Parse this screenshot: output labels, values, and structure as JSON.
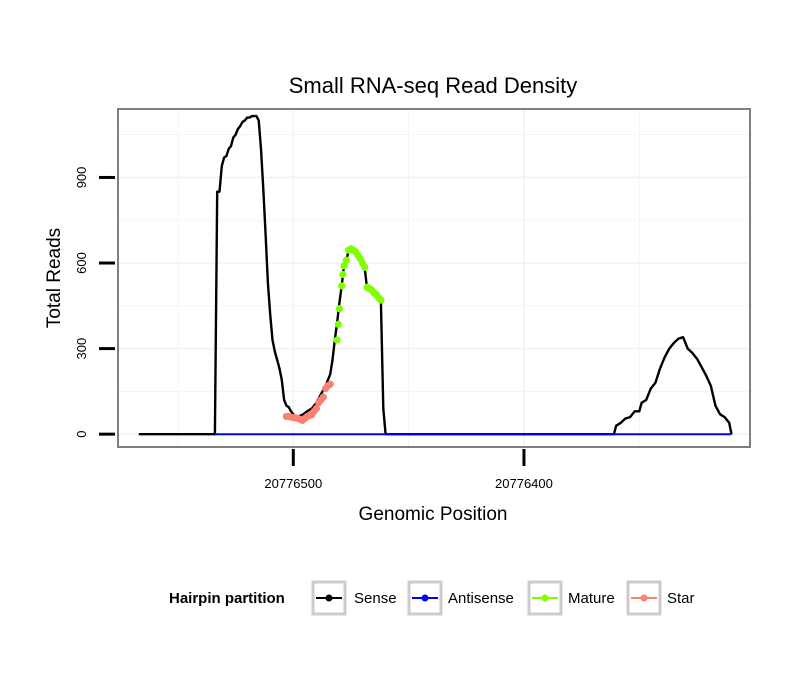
{
  "chart_data": {
    "type": "line",
    "title": "Small RNA-seq Read Density",
    "xlabel": "Genomic Position",
    "ylabel": "Total Reads",
    "x_reversed": true,
    "xlim": [
      20776576,
      20776302
    ],
    "ylim": [
      -45,
      1140
    ],
    "x_ticks": [
      20776500,
      20776400
    ],
    "x_tick_labels": [
      "20776500",
      "20776400"
    ],
    "y_ticks": [
      0,
      300,
      600,
      900
    ],
    "y_tick_labels": [
      "0",
      "300",
      "600",
      "900"
    ],
    "grid": true,
    "legend": {
      "title": "Hairpin partition",
      "position": "bottom",
      "entries": [
        {
          "label": "Sense",
          "color": "#000000"
        },
        {
          "label": "Antisense",
          "color": "#0000ff"
        },
        {
          "label": "Mature",
          "color": "#7fff00"
        },
        {
          "label": "Star",
          "color": "#fa8072"
        }
      ]
    },
    "series": [
      {
        "name": "Sense",
        "color": "#000000",
        "points": [
          [
            20776567,
            0
          ],
          [
            20776534,
            0
          ],
          [
            20776533,
            850
          ],
          [
            20776532,
            850
          ],
          [
            20776531,
            940
          ],
          [
            20776530,
            970
          ],
          [
            20776529,
            975
          ],
          [
            20776528,
            1000
          ],
          [
            20776527,
            1010
          ],
          [
            20776526,
            1040
          ],
          [
            20776525,
            1050
          ],
          [
            20776524,
            1070
          ],
          [
            20776523,
            1080
          ],
          [
            20776522,
            1095
          ],
          [
            20776521,
            1100
          ],
          [
            20776520,
            1110
          ],
          [
            20776519,
            1110
          ],
          [
            20776518,
            1115
          ],
          [
            20776516,
            1115
          ],
          [
            20776515,
            1100
          ],
          [
            20776514,
            1000
          ],
          [
            20776513,
            860
          ],
          [
            20776512,
            700
          ],
          [
            20776511,
            530
          ],
          [
            20776510,
            420
          ],
          [
            20776509,
            330
          ],
          [
            20776508,
            290
          ],
          [
            20776507,
            260
          ],
          [
            20776506,
            230
          ],
          [
            20776505,
            190
          ],
          [
            20776504,
            120
          ],
          [
            20776503,
            100
          ],
          [
            20776502,
            95
          ],
          [
            20776501,
            80
          ],
          [
            20776500,
            70
          ],
          [
            20776499,
            60
          ],
          [
            20776498,
            62
          ],
          [
            20776496,
            68
          ],
          [
            20776494,
            80
          ],
          [
            20776492,
            90
          ],
          [
            20776490,
            110
          ],
          [
            20776488,
            140
          ],
          [
            20776486,
            170
          ],
          [
            20776485,
            190
          ],
          [
            20776484,
            210
          ],
          [
            20776483,
            260
          ],
          [
            20776482,
            330
          ],
          [
            20776481,
            390
          ],
          [
            20776480,
            460
          ],
          [
            20776479,
            520
          ],
          [
            20776478,
            590
          ],
          [
            20776477,
            610
          ],
          [
            20776476,
            645
          ],
          [
            20776475,
            650
          ],
          [
            20776474,
            645
          ],
          [
            20776473,
            640
          ],
          [
            20776472,
            625
          ],
          [
            20776471,
            610
          ],
          [
            20776470,
            600
          ],
          [
            20776469,
            580
          ],
          [
            20776468,
            510
          ],
          [
            20776467,
            505
          ],
          [
            20776466,
            500
          ],
          [
            20776465,
            490
          ],
          [
            20776464,
            480
          ],
          [
            20776463,
            470
          ],
          [
            20776462,
            465
          ],
          [
            20776461,
            90
          ],
          [
            20776460,
            0
          ],
          [
            20776361,
            0
          ],
          [
            20776360,
            30
          ],
          [
            20776358,
            40
          ],
          [
            20776356,
            55
          ],
          [
            20776354,
            60
          ],
          [
            20776352,
            80
          ],
          [
            20776350,
            80
          ],
          [
            20776349,
            110
          ],
          [
            20776347,
            120
          ],
          [
            20776345,
            160
          ],
          [
            20776343,
            180
          ],
          [
            20776341,
            230
          ],
          [
            20776339,
            270
          ],
          [
            20776337,
            300
          ],
          [
            20776335,
            320
          ],
          [
            20776333,
            335
          ],
          [
            20776331,
            340
          ],
          [
            20776329,
            300
          ],
          [
            20776327,
            285
          ],
          [
            20776325,
            265
          ],
          [
            20776323,
            235
          ],
          [
            20776321,
            205
          ],
          [
            20776319,
            170
          ],
          [
            20776317,
            100
          ],
          [
            20776315,
            70
          ],
          [
            20776313,
            60
          ],
          [
            20776311,
            40
          ],
          [
            20776310,
            0
          ]
        ]
      },
      {
        "name": "Antisense",
        "color": "#0000ff",
        "points": [
          [
            20776534,
            0
          ],
          [
            20776310,
            0
          ]
        ]
      },
      {
        "name": "Mature",
        "color": "#7fff00",
        "points": [
          [
            20776481,
            330
          ],
          [
            20776480.5,
            385
          ],
          [
            20776480,
            440
          ],
          [
            20776479,
            520
          ],
          [
            20776478.5,
            560
          ],
          [
            20776478,
            590
          ],
          [
            20776477,
            610
          ],
          [
            20776476,
            645
          ],
          [
            20776475,
            650
          ],
          [
            20776474,
            645
          ],
          [
            20776473,
            640
          ],
          [
            20776472,
            628
          ],
          [
            20776471,
            615
          ],
          [
            20776470,
            600
          ],
          [
            20776469,
            585
          ],
          [
            20776468,
            515
          ],
          [
            20776467,
            510
          ],
          [
            20776466,
            505
          ],
          [
            20776465,
            495
          ],
          [
            20776464,
            490
          ],
          [
            20776463,
            478
          ],
          [
            20776462,
            470
          ]
        ]
      },
      {
        "name": "Star",
        "color": "#fa8072",
        "points": [
          [
            20776503,
            62
          ],
          [
            20776502,
            62
          ],
          [
            20776501,
            60
          ],
          [
            20776500,
            58
          ],
          [
            20776499,
            57
          ],
          [
            20776498,
            55
          ],
          [
            20776497,
            52
          ],
          [
            20776496,
            48
          ],
          [
            20776495,
            55
          ],
          [
            20776494,
            62
          ],
          [
            20776493,
            65
          ],
          [
            20776492,
            68
          ],
          [
            20776491,
            80
          ],
          [
            20776490,
            90
          ],
          [
            20776489,
            110
          ],
          [
            20776488,
            120
          ],
          [
            20776487,
            130
          ],
          [
            20776486,
            160
          ],
          [
            20776485,
            170
          ],
          [
            20776484,
            175
          ]
        ]
      }
    ]
  }
}
